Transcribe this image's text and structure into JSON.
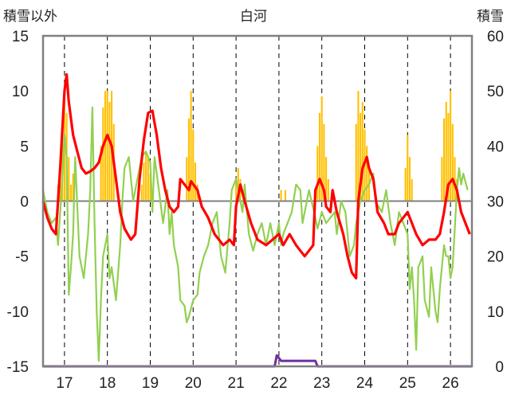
{
  "chart_data": {
    "type": "combo",
    "title": "白河",
    "left_axis_label": "積雪以外",
    "right_axis_label": "積雪",
    "left_ylim": [
      -15,
      15
    ],
    "left_ticks": [
      "15",
      "10",
      "5",
      "0",
      "-5",
      "-10",
      "-15"
    ],
    "right_ylim": [
      0,
      60
    ],
    "right_ticks": [
      "60",
      "50",
      "40",
      "30",
      "20",
      "10",
      "0"
    ],
    "x_range": [
      16.5,
      26.5
    ],
    "x_ticks": [
      "17",
      "18",
      "19",
      "20",
      "21",
      "22",
      "23",
      "24",
      "25",
      "26"
    ],
    "grid": {
      "vertical_dashed": true,
      "horizontal": false
    },
    "colors": {
      "snow_bars": "#FFC000",
      "red_line": "#FF0000",
      "green_line": "#92D050",
      "purple_line": "#7030A0",
      "zero_line": "#808080",
      "frame": "#808080"
    },
    "snow_bars": [
      [
        16.85,
        33
      ],
      [
        16.9,
        37
      ],
      [
        16.95,
        42
      ],
      [
        17.0,
        49
      ],
      [
        17.05,
        46
      ],
      [
        17.1,
        38
      ],
      [
        17.15,
        33
      ],
      [
        17.2,
        35
      ],
      [
        17.85,
        40
      ],
      [
        17.9,
        47
      ],
      [
        17.95,
        50
      ],
      [
        18.0,
        50
      ],
      [
        18.05,
        48
      ],
      [
        18.1,
        50
      ],
      [
        18.15,
        44
      ],
      [
        18.8,
        33
      ],
      [
        18.85,
        37
      ],
      [
        18.9,
        39
      ],
      [
        18.95,
        38
      ],
      [
        19.0,
        35
      ],
      [
        19.05,
        32
      ],
      [
        19.85,
        38
      ],
      [
        19.9,
        45
      ],
      [
        19.95,
        50
      ],
      [
        20.0,
        43
      ],
      [
        20.05,
        37
      ],
      [
        20.1,
        33
      ],
      [
        21.0,
        34
      ],
      [
        21.05,
        36
      ],
      [
        21.1,
        34
      ],
      [
        22.05,
        32
      ],
      [
        22.15,
        32
      ],
      [
        22.9,
        40
      ],
      [
        22.95,
        46
      ],
      [
        23.0,
        49
      ],
      [
        23.05,
        44
      ],
      [
        23.1,
        38
      ],
      [
        23.15,
        34
      ],
      [
        23.8,
        44
      ],
      [
        23.85,
        50
      ],
      [
        23.9,
        46
      ],
      [
        23.95,
        48
      ],
      [
        24.0,
        43
      ],
      [
        24.05,
        40
      ],
      [
        24.1,
        36
      ],
      [
        24.95,
        36
      ],
      [
        25.0,
        42
      ],
      [
        25.05,
        38
      ],
      [
        25.1,
        34
      ],
      [
        25.8,
        38
      ],
      [
        25.85,
        45
      ],
      [
        25.9,
        48
      ],
      [
        25.95,
        46
      ],
      [
        26.0,
        50
      ],
      [
        26.05,
        44
      ],
      [
        26.1,
        38
      ],
      [
        26.15,
        34
      ]
    ],
    "red_line": [
      [
        16.5,
        0
      ],
      [
        16.6,
        -1.5
      ],
      [
        16.7,
        -2.5
      ],
      [
        16.8,
        -3
      ],
      [
        16.9,
        3
      ],
      [
        17.0,
        10
      ],
      [
        17.05,
        11.5
      ],
      [
        17.1,
        9
      ],
      [
        17.2,
        6
      ],
      [
        17.3,
        4.5
      ],
      [
        17.4,
        3
      ],
      [
        17.5,
        2.5
      ],
      [
        17.6,
        2.7
      ],
      [
        17.7,
        3
      ],
      [
        17.8,
        3.5
      ],
      [
        17.9,
        5
      ],
      [
        18.0,
        6
      ],
      [
        18.1,
        5
      ],
      [
        18.2,
        2
      ],
      [
        18.3,
        -1
      ],
      [
        18.4,
        -2.5
      ],
      [
        18.55,
        -3.5
      ],
      [
        18.65,
        -3
      ],
      [
        18.75,
        2
      ],
      [
        18.85,
        5.5
      ],
      [
        18.95,
        8
      ],
      [
        19.05,
        8.2
      ],
      [
        19.15,
        6
      ],
      [
        19.25,
        3
      ],
      [
        19.35,
        1
      ],
      [
        19.45,
        -0.5
      ],
      [
        19.55,
        -1
      ],
      [
        19.65,
        -0.5
      ],
      [
        19.7,
        2
      ],
      [
        19.8,
        1.5
      ],
      [
        19.9,
        1
      ],
      [
        19.95,
        1.8
      ],
      [
        20.1,
        1
      ],
      [
        20.2,
        -0.5
      ],
      [
        20.35,
        -1.5
      ],
      [
        20.5,
        -3
      ],
      [
        20.7,
        -4
      ],
      [
        20.85,
        -3.5
      ],
      [
        20.95,
        -4
      ],
      [
        21.0,
        -0.5
      ],
      [
        21.1,
        1.5
      ],
      [
        21.2,
        0
      ],
      [
        21.35,
        -2
      ],
      [
        21.5,
        -3.5
      ],
      [
        21.7,
        -4
      ],
      [
        21.85,
        -3.5
      ],
      [
        22.0,
        -3
      ],
      [
        22.1,
        -4
      ],
      [
        22.25,
        -3
      ],
      [
        22.4,
        -4
      ],
      [
        22.5,
        -4.5
      ],
      [
        22.6,
        -5
      ],
      [
        22.7,
        -4.5
      ],
      [
        22.8,
        -4
      ],
      [
        22.85,
        1
      ],
      [
        22.95,
        2
      ],
      [
        23.05,
        1
      ],
      [
        23.1,
        -0.5
      ],
      [
        23.2,
        -1
      ],
      [
        23.25,
        1
      ],
      [
        23.35,
        -1
      ],
      [
        23.5,
        -3
      ],
      [
        23.6,
        -5
      ],
      [
        23.7,
        -6.5
      ],
      [
        23.8,
        -7
      ],
      [
        23.85,
        0
      ],
      [
        23.95,
        3
      ],
      [
        24.05,
        4
      ],
      [
        24.1,
        3
      ],
      [
        24.2,
        2
      ],
      [
        24.3,
        -1
      ],
      [
        24.45,
        -2
      ],
      [
        24.55,
        -3
      ],
      [
        24.7,
        -3
      ],
      [
        24.8,
        -2
      ],
      [
        24.9,
        -1.5
      ],
      [
        25.0,
        -1
      ],
      [
        25.1,
        -2
      ],
      [
        25.2,
        -3
      ],
      [
        25.35,
        -4
      ],
      [
        25.5,
        -3.5
      ],
      [
        25.65,
        -3.5
      ],
      [
        25.75,
        -3
      ],
      [
        25.85,
        -1
      ],
      [
        25.95,
        1.5
      ],
      [
        26.05,
        2
      ],
      [
        26.15,
        1
      ],
      [
        26.25,
        -1
      ],
      [
        26.35,
        -2
      ],
      [
        26.45,
        -3
      ]
    ],
    "green_line": [
      [
        16.5,
        1
      ],
      [
        16.6,
        -1
      ],
      [
        16.7,
        -2
      ],
      [
        16.8,
        -1.5
      ],
      [
        16.85,
        -4
      ],
      [
        16.95,
        2
      ],
      [
        17.0,
        6
      ],
      [
        17.05,
        4
      ],
      [
        17.1,
        -8.5
      ],
      [
        17.15,
        -6
      ],
      [
        17.2,
        -3
      ],
      [
        17.25,
        4
      ],
      [
        17.35,
        -5
      ],
      [
        17.45,
        -7
      ],
      [
        17.55,
        -3
      ],
      [
        17.6,
        1
      ],
      [
        17.65,
        8.5
      ],
      [
        17.7,
        -2
      ],
      [
        17.75,
        -10
      ],
      [
        17.8,
        -14.5
      ],
      [
        17.85,
        -9
      ],
      [
        17.9,
        -5
      ],
      [
        17.95,
        -4
      ],
      [
        18.0,
        -3
      ],
      [
        18.05,
        -7
      ],
      [
        18.1,
        -6
      ],
      [
        18.15,
        -7.5
      ],
      [
        18.2,
        -9
      ],
      [
        18.3,
        -4
      ],
      [
        18.35,
        0
      ],
      [
        18.4,
        3
      ],
      [
        18.5,
        4
      ],
      [
        18.6,
        0
      ],
      [
        18.7,
        2
      ],
      [
        18.8,
        4
      ],
      [
        18.9,
        4.5
      ],
      [
        19.0,
        3.5
      ],
      [
        19.05,
        -1
      ],
      [
        19.1,
        4
      ],
      [
        19.2,
        1
      ],
      [
        19.3,
        -2
      ],
      [
        19.4,
        1
      ],
      [
        19.45,
        -3
      ],
      [
        19.5,
        -1
      ],
      [
        19.55,
        -4
      ],
      [
        19.65,
        -6
      ],
      [
        19.7,
        -9
      ],
      [
        19.8,
        -9.5
      ],
      [
        19.85,
        -11
      ],
      [
        19.9,
        -10.5
      ],
      [
        20.0,
        -9
      ],
      [
        20.1,
        -8.5
      ],
      [
        20.15,
        -6.5
      ],
      [
        20.25,
        -5
      ],
      [
        20.35,
        -4
      ],
      [
        20.45,
        -2
      ],
      [
        20.55,
        -1
      ],
      [
        20.65,
        -5
      ],
      [
        20.75,
        -6.5
      ],
      [
        20.85,
        -2
      ],
      [
        20.9,
        1
      ],
      [
        21.0,
        2
      ],
      [
        21.05,
        1
      ],
      [
        21.15,
        -1
      ],
      [
        21.2,
        1.5
      ],
      [
        21.3,
        -3
      ],
      [
        21.4,
        -4.5
      ],
      [
        21.5,
        -3
      ],
      [
        21.6,
        -2
      ],
      [
        21.7,
        -4
      ],
      [
        21.8,
        -2
      ],
      [
        21.9,
        -4
      ],
      [
        22.0,
        -2
      ],
      [
        22.05,
        -4
      ],
      [
        22.1,
        -3
      ],
      [
        22.2,
        -2
      ],
      [
        22.3,
        -1
      ],
      [
        22.4,
        1.5
      ],
      [
        22.5,
        1
      ],
      [
        22.55,
        -2
      ],
      [
        22.7,
        1
      ],
      [
        22.85,
        -1.5
      ],
      [
        22.9,
        -2.5
      ],
      [
        23.0,
        -1
      ],
      [
        23.1,
        -2
      ],
      [
        23.2,
        -1.5
      ],
      [
        23.3,
        -1
      ],
      [
        23.35,
        -3
      ],
      [
        23.45,
        0
      ],
      [
        23.55,
        -1
      ],
      [
        23.65,
        -5
      ],
      [
        23.75,
        -4
      ],
      [
        23.8,
        -2
      ],
      [
        23.9,
        0
      ],
      [
        24.0,
        1
      ],
      [
        24.1,
        1.5
      ],
      [
        24.2,
        2.5
      ],
      [
        24.25,
        0
      ],
      [
        24.4,
        -1
      ],
      [
        24.5,
        1
      ],
      [
        24.6,
        -2
      ],
      [
        24.7,
        -4
      ],
      [
        24.8,
        -1
      ],
      [
        24.9,
        -2
      ],
      [
        25.0,
        -3
      ],
      [
        25.05,
        -8
      ],
      [
        25.1,
        -6
      ],
      [
        25.15,
        -9
      ],
      [
        25.2,
        -13.5
      ],
      [
        25.25,
        -6
      ],
      [
        25.35,
        -5
      ],
      [
        25.4,
        -9
      ],
      [
        25.5,
        -10.5
      ],
      [
        25.55,
        -6
      ],
      [
        25.65,
        -10
      ],
      [
        25.7,
        -11
      ],
      [
        25.75,
        -8
      ],
      [
        25.8,
        -6
      ],
      [
        25.85,
        -4
      ],
      [
        25.9,
        -5
      ],
      [
        25.95,
        -5
      ],
      [
        26.0,
        -7
      ],
      [
        26.05,
        -6
      ],
      [
        26.15,
        1
      ],
      [
        26.2,
        3
      ],
      [
        26.25,
        1.5
      ],
      [
        26.3,
        2.5
      ],
      [
        26.4,
        1
      ]
    ],
    "purple_line": [
      [
        16.5,
        0
      ],
      [
        21.9,
        0
      ],
      [
        21.95,
        2
      ],
      [
        22.05,
        1
      ],
      [
        22.85,
        1
      ],
      [
        22.9,
        0
      ],
      [
        26.5,
        0
      ]
    ]
  }
}
